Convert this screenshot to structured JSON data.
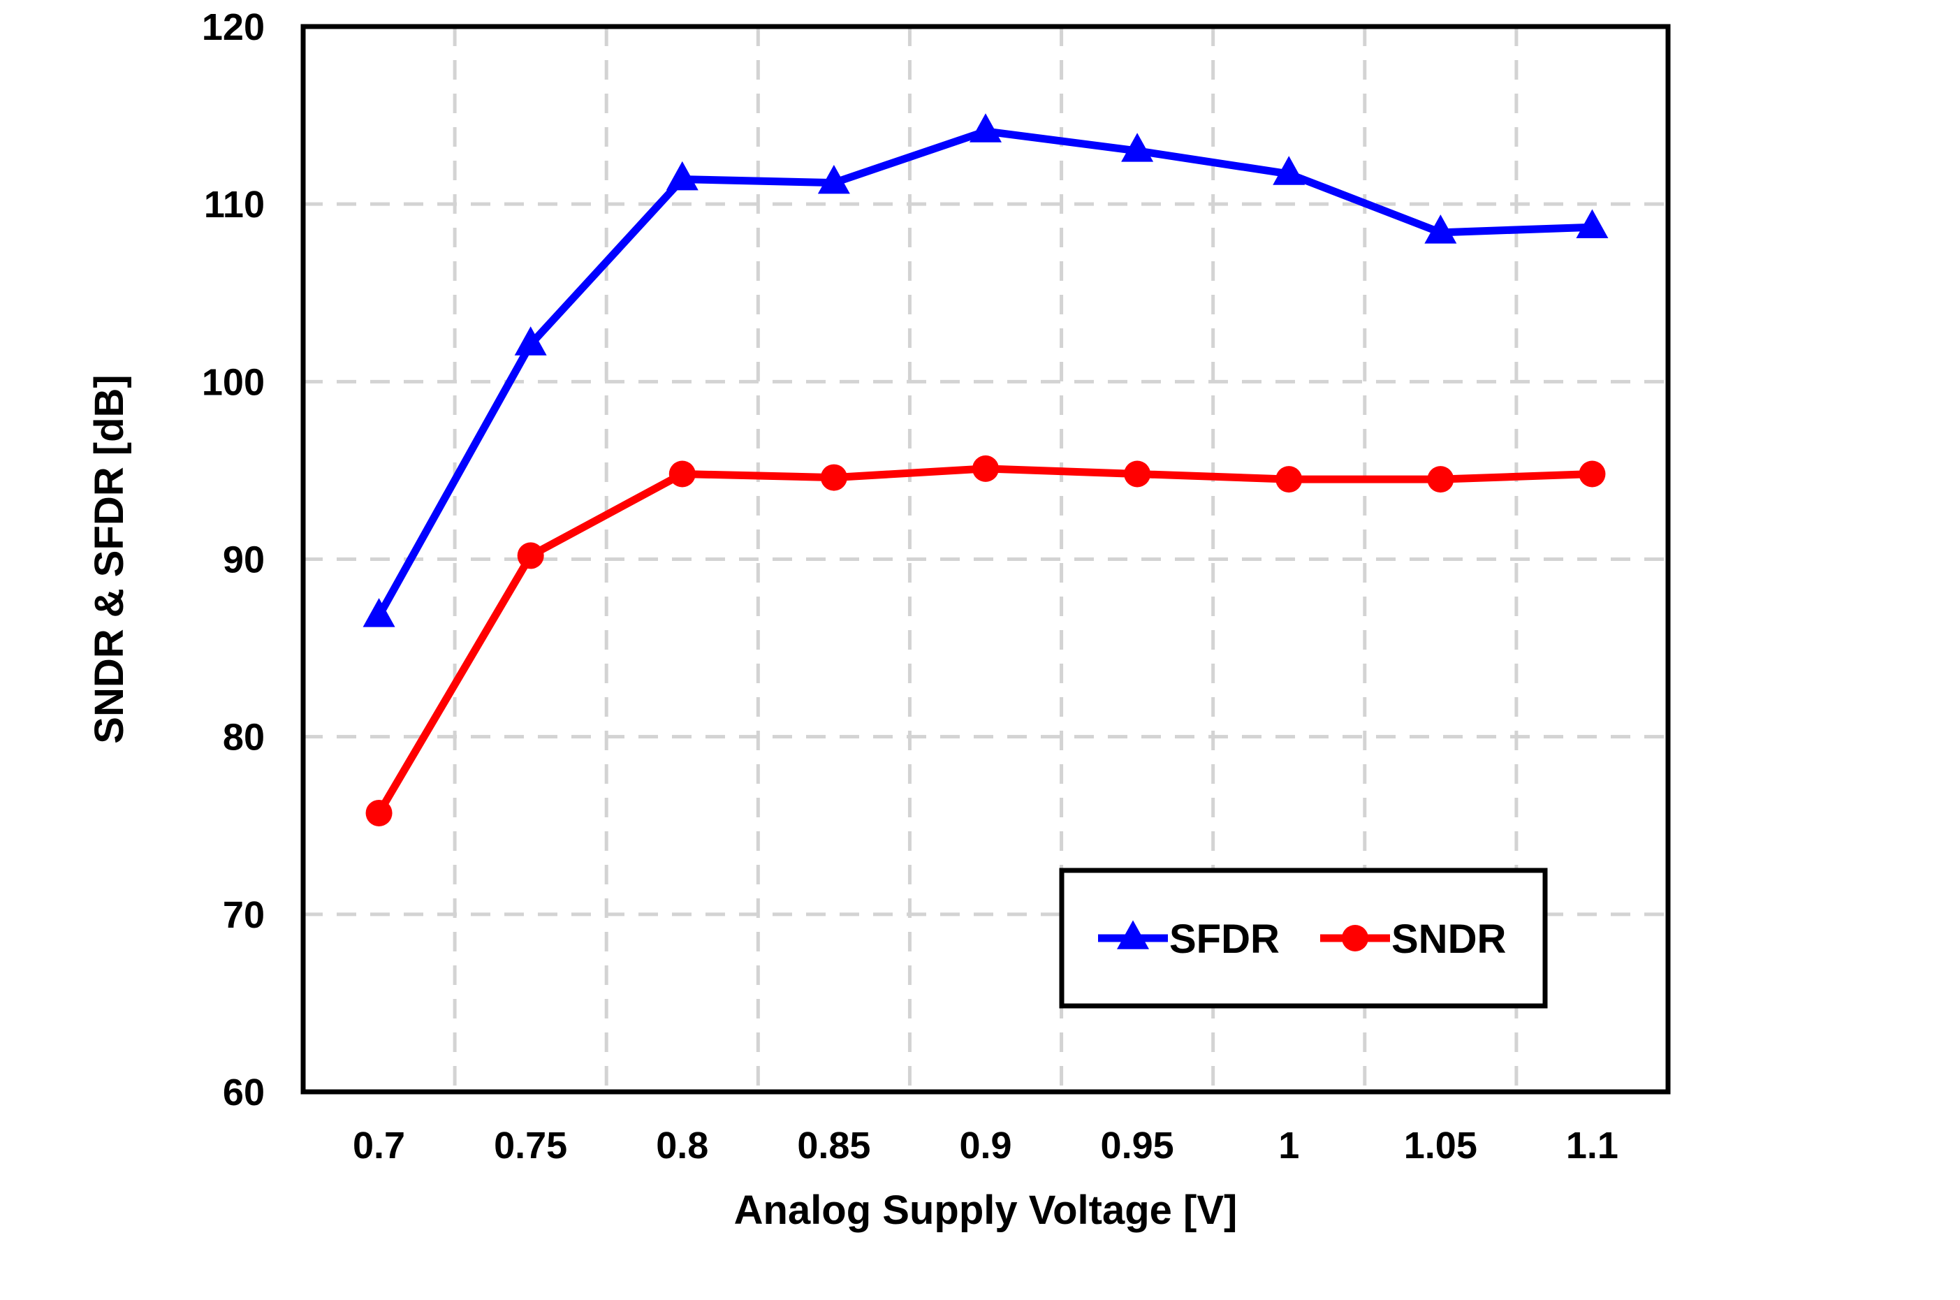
{
  "chart_data": {
    "type": "line",
    "xlabel": "Analog Supply Voltage [V]",
    "ylabel": "SNDR &  SFDR [dB]",
    "categories": [
      "0.7",
      "0.75",
      "0.8",
      "0.85",
      "0.9",
      "0.95",
      "1",
      "1.05",
      "1.1"
    ],
    "ylim": [
      60,
      120
    ],
    "yticks": [
      "60",
      "70",
      "80",
      "90",
      "100",
      "110",
      "120"
    ],
    "grid": true,
    "legend_position": "bottom-right",
    "series": [
      {
        "name": "SFDR",
        "color": "#0000ff",
        "marker": "triangle",
        "values": [
          86.8,
          102.1,
          111.4,
          111.2,
          114.1,
          113.0,
          111.7,
          108.4,
          108.7
        ]
      },
      {
        "name": "SNDR",
        "color": "#ff0000",
        "marker": "circle",
        "values": [
          75.7,
          90.2,
          94.8,
          94.6,
          95.1,
          94.8,
          94.5,
          94.5,
          94.8
        ]
      }
    ]
  }
}
